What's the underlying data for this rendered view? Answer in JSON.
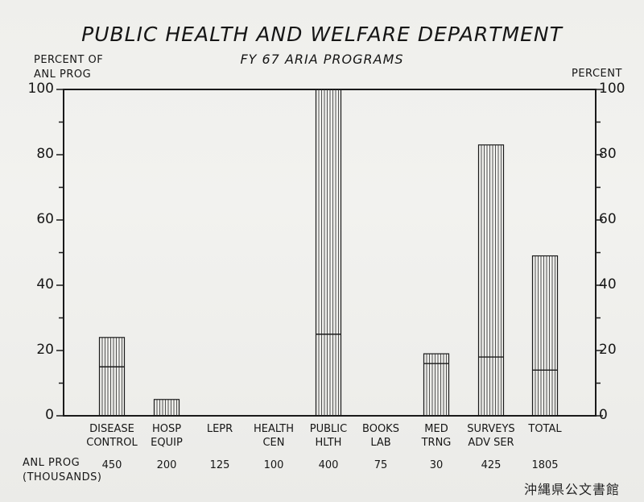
{
  "chart_data": {
    "type": "bar",
    "title": "PUBLIC HEALTH AND WELFARE DEPARTMENT",
    "subtitle": "FY 67 ARIA PROGRAMS",
    "ylabel_left": "PERCENT OF ANL PROG",
    "ylabel_left_lines": [
      "PERCENT OF",
      "ANL PROG"
    ],
    "ylabel_right": "PERCENT",
    "ylim": [
      0,
      100
    ],
    "yticks": [
      0,
      20,
      40,
      60,
      80,
      100
    ],
    "categories": [
      [
        "DISEASE",
        "CONTROL"
      ],
      [
        "HOSP",
        "EQUIP"
      ],
      [
        "LEPR"
      ],
      [
        "HEALTH",
        "CEN"
      ],
      [
        "PUBLIC",
        "HLTH"
      ],
      [
        "BOOKS",
        "LAB"
      ],
      [
        "MED",
        "TRNG"
      ],
      [
        "SURVEYS",
        "ADV SER"
      ],
      [
        "TOTAL"
      ]
    ],
    "values": [
      24,
      5,
      0,
      0,
      100,
      0,
      19,
      83,
      49
    ],
    "inner_marks": [
      15,
      null,
      null,
      null,
      25,
      null,
      16,
      18,
      14
    ],
    "annual_program_label": [
      "ANL PROG",
      "(THOUSANDS)"
    ],
    "annual_program_thousands": [
      "450",
      "200",
      "125",
      "100",
      "400",
      "75",
      "30",
      "425",
      "1805"
    ]
  },
  "stamp": "沖縄県公文書館"
}
